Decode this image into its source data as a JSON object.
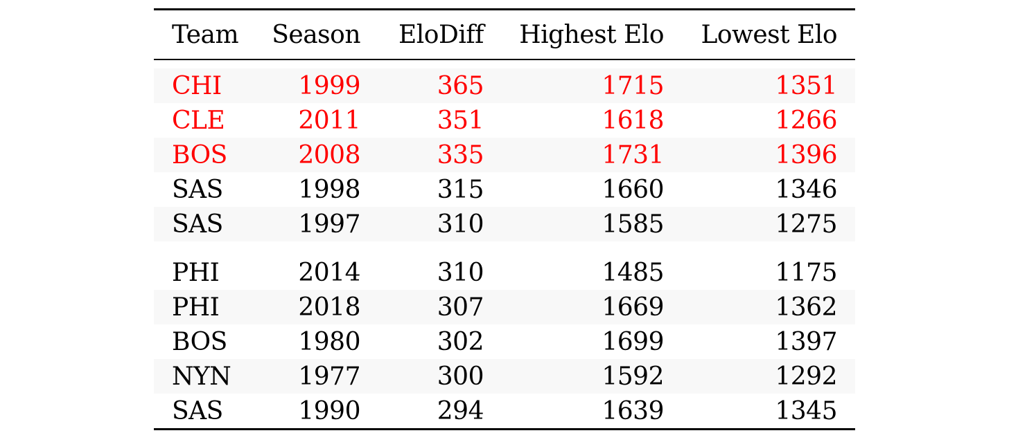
{
  "table": {
    "headers": [
      "Team",
      "Season",
      "EloDiff",
      "Highest Elo",
      "Lowest Elo"
    ],
    "highlight_color": "#ff0000",
    "group1": [
      {
        "team": "CHI",
        "season": "1999",
        "elodiff": "365",
        "highest": "1715",
        "lowest": "1351",
        "highlight": true
      },
      {
        "team": "CLE",
        "season": "2011",
        "elodiff": "351",
        "highest": "1618",
        "lowest": "1266",
        "highlight": true
      },
      {
        "team": "BOS",
        "season": "2008",
        "elodiff": "335",
        "highest": "1731",
        "lowest": "1396",
        "highlight": true
      },
      {
        "team": "SAS",
        "season": "1998",
        "elodiff": "315",
        "highest": "1660",
        "lowest": "1346",
        "highlight": false
      },
      {
        "team": "SAS",
        "season": "1997",
        "elodiff": "310",
        "highest": "1585",
        "lowest": "1275",
        "highlight": false
      }
    ],
    "group2": [
      {
        "team": "PHI",
        "season": "2014",
        "elodiff": "310",
        "highest": "1485",
        "lowest": "1175",
        "highlight": false
      },
      {
        "team": "PHI",
        "season": "2018",
        "elodiff": "307",
        "highest": "1669",
        "lowest": "1362",
        "highlight": false
      },
      {
        "team": "BOS",
        "season": "1980",
        "elodiff": "302",
        "highest": "1699",
        "lowest": "1397",
        "highlight": false
      },
      {
        "team": "NYN",
        "season": "1977",
        "elodiff": "300",
        "highest": "1592",
        "lowest": "1292",
        "highlight": false
      },
      {
        "team": "SAS",
        "season": "1990",
        "elodiff": "294",
        "highest": "1639",
        "lowest": "1345",
        "highlight": false
      }
    ]
  }
}
